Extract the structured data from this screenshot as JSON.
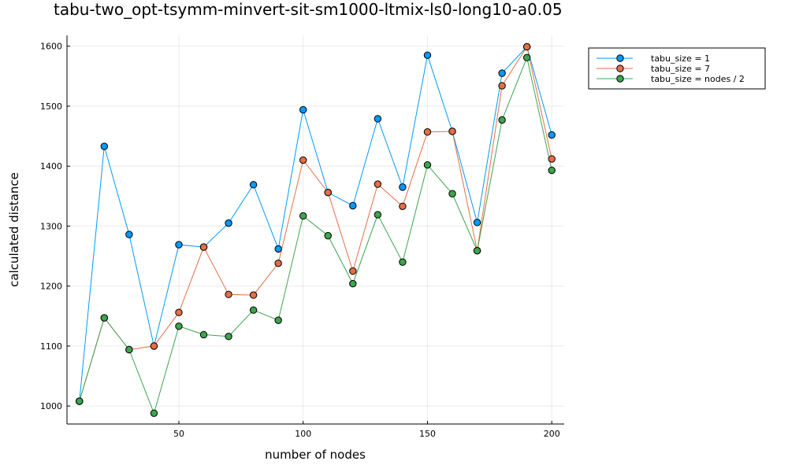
{
  "chart_data": {
    "type": "line",
    "title": "tabu-two_opt-tsymm-minvert-sit-sm1000-ltmix-ls0-long10-a0.05",
    "xlabel": "number of nodes",
    "ylabel": "calculated distance",
    "xlim": [
      5,
      205
    ],
    "ylim": [
      970,
      1618
    ],
    "xticks": [
      50,
      100,
      150,
      200
    ],
    "yticks": [
      1000,
      1100,
      1200,
      1300,
      1400,
      1500,
      1600
    ],
    "grid": true,
    "legend_position": "top-right",
    "x": [
      10,
      20,
      30,
      40,
      50,
      60,
      70,
      80,
      90,
      100,
      110,
      120,
      130,
      140,
      150,
      160,
      170,
      180,
      190,
      200
    ],
    "series": [
      {
        "name": "tabu_size = 1",
        "color": "#009AFA",
        "values": [
          1008,
          1433,
          1286,
          1100,
          1269,
          1265,
          1305,
          1369,
          1262,
          1494,
          1356,
          1334,
          1479,
          1365,
          1585,
          1458,
          1306,
          1555,
          1599,
          1452
        ]
      },
      {
        "name": "tabu_size = 7",
        "color": "#E36F47",
        "values": [
          1008,
          1147,
          1094,
          1100,
          1156,
          1265,
          1186,
          1185,
          1238,
          1410,
          1356,
          1225,
          1370,
          1333,
          1457,
          1458,
          1259,
          1534,
          1599,
          1412
        ]
      },
      {
        "name": "tabu_size = nodes / 2",
        "color": "#3EA44E",
        "values": [
          1008,
          1147,
          1094,
          988,
          1133,
          1119,
          1116,
          1160,
          1143,
          1317,
          1284,
          1204,
          1319,
          1240,
          1402,
          1354,
          1259,
          1477,
          1581,
          1393
        ]
      }
    ]
  }
}
